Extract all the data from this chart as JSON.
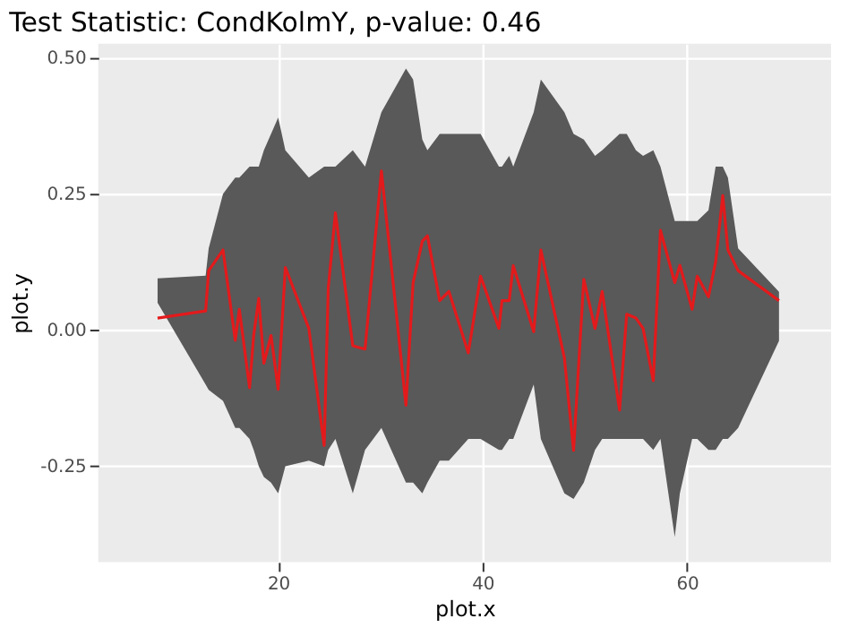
{
  "chart_data": {
    "type": "line",
    "title": "Test Statistic: CondKolmY, p-value: 0.46",
    "xlabel": "plot.x",
    "ylabel": "plot.y",
    "x": [
      8.2,
      12.9,
      13.2,
      14.6,
      15.8,
      16.2,
      17.2,
      17.6,
      18.1,
      18.6,
      19.3,
      20.0,
      20.7,
      23.0,
      24.5,
      24.9,
      25.6,
      27.3,
      28.5,
      30.1,
      32.5,
      33.2,
      34.1,
      34.6,
      35.8,
      36.7,
      38.6,
      39.8,
      41.6,
      41.9,
      42.6,
      43.0,
      45.0,
      45.7,
      48.0,
      48.9,
      49.9,
      51.0,
      51.7,
      53.4,
      54.1,
      55.0,
      55.7,
      56.7,
      57.4,
      58.8,
      59.3,
      60.5,
      61.0,
      62.1,
      62.8,
      63.5,
      64.0,
      65.0,
      69.0
    ],
    "series": [
      {
        "color": "#e31a1c",
        "values": [
          0.022,
          0.035,
          0.109,
          0.147,
          -0.019,
          0.038,
          -0.106,
          -0.01,
          0.058,
          -0.061,
          -0.01,
          -0.109,
          0.115,
          0.003,
          -0.212,
          0.077,
          0.215,
          -0.029,
          -0.035,
          0.292,
          -0.138,
          0.087,
          0.163,
          0.173,
          0.054,
          0.071,
          -0.042,
          0.099,
          0.003,
          0.054,
          0.054,
          0.118,
          -0.003,
          0.147,
          -0.051,
          -0.221,
          0.093,
          0.003,
          0.071,
          -0.147,
          0.029,
          0.022,
          0.003,
          -0.093,
          0.183,
          0.087,
          0.119,
          0.038,
          0.099,
          0.061,
          0.125,
          0.247,
          0.147,
          0.109,
          0.054
        ],
        "lower": [
          0.05,
          -0.1,
          -0.11,
          -0.13,
          -0.18,
          -0.18,
          -0.2,
          -0.22,
          -0.25,
          -0.27,
          -0.28,
          -0.3,
          -0.25,
          -0.24,
          -0.25,
          -0.22,
          -0.2,
          -0.3,
          -0.22,
          -0.18,
          -0.28,
          -0.28,
          -0.3,
          -0.28,
          -0.24,
          -0.24,
          -0.2,
          -0.2,
          -0.22,
          -0.22,
          -0.2,
          -0.2,
          -0.1,
          -0.2,
          -0.3,
          -0.31,
          -0.28,
          -0.22,
          -0.2,
          -0.2,
          -0.2,
          -0.2,
          -0.2,
          -0.22,
          -0.2,
          -0.38,
          -0.3,
          -0.2,
          -0.2,
          -0.22,
          -0.22,
          -0.2,
          -0.2,
          -0.18,
          -0.02
        ],
        "upper": [
          0.095,
          0.1,
          0.15,
          0.25,
          0.28,
          0.28,
          0.3,
          0.3,
          0.3,
          0.33,
          0.36,
          0.39,
          0.33,
          0.28,
          0.3,
          0.3,
          0.3,
          0.33,
          0.3,
          0.4,
          0.48,
          0.46,
          0.35,
          0.33,
          0.36,
          0.36,
          0.36,
          0.36,
          0.3,
          0.3,
          0.32,
          0.3,
          0.4,
          0.46,
          0.4,
          0.36,
          0.35,
          0.32,
          0.33,
          0.36,
          0.36,
          0.33,
          0.32,
          0.33,
          0.3,
          0.2,
          0.2,
          0.2,
          0.2,
          0.22,
          0.3,
          0.3,
          0.28,
          0.15,
          0.07
        ]
      }
    ],
    "xlim": [
      2.4,
      74.1
    ],
    "xticks": [
      20,
      40,
      60
    ],
    "ylim": [
      -0.426,
      0.526
    ],
    "yticks": [
      {
        "value": -0.25,
        "label": "-0.25"
      },
      {
        "value": 0,
        "label": "0.00"
      },
      {
        "value": 0.25,
        "label": "0.25"
      },
      {
        "value": 0.5,
        "label": "0.50"
      }
    ],
    "grid": true,
    "line_style": "solid",
    "marker": "none"
  }
}
